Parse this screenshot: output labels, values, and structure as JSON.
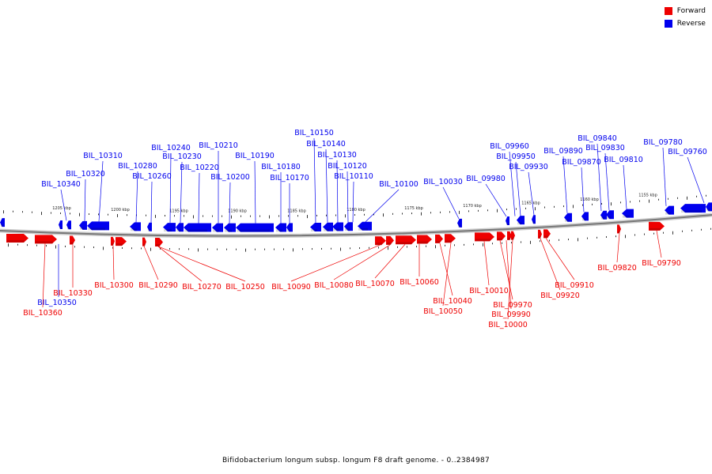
{
  "legend": {
    "forward": {
      "label": "Forward",
      "color": "#ee0000"
    },
    "reverse": {
      "label": "Reverse",
      "color": "#0000ee"
    }
  },
  "caption": "Bifidobacterium longum subsp. longum F8 draft genome. - 0..2384987",
  "scale_labels": [
    "1205 kbp",
    "1200 kbp",
    "1195 kbp",
    "1190 kbp",
    "1185 kbp",
    "1180 kbp",
    "1175 kbp",
    "1170 kbp",
    "1165 kbp",
    "1160 kbp",
    "1155 kbp"
  ],
  "reverse_labels": [
    "BIL_10340",
    "BIL_10320",
    "BIL_10310",
    "BIL_10280",
    "BIL_10260",
    "BIL_10240",
    "BIL_10230",
    "BIL_10220",
    "BIL_10210",
    "BIL_10200",
    "BIL_10190",
    "BIL_10180",
    "BIL_10170",
    "BIL_10150",
    "BIL_10140",
    "BIL_10130",
    "BIL_10120",
    "BIL_10110",
    "BIL_10100",
    "BIL_10030",
    "BIL_09980",
    "BIL_09960",
    "BIL_09950",
    "BIL_09930",
    "BIL_09890",
    "BIL_09870",
    "BIL_09840",
    "BIL_09830",
    "BIL_09810",
    "BIL_09780",
    "BIL_09760",
    "BIL_10350"
  ],
  "forward_labels": [
    "BIL_10300",
    "BIL_10290",
    "BIL_10270",
    "BIL_10250",
    "BIL_10090",
    "BIL_10080",
    "BIL_10070",
    "BIL_10060",
    "BIL_10040",
    "BIL_10050",
    "BIL_10010",
    "BIL_09970",
    "BIL_09990",
    "BIL_10000",
    "BIL_09920",
    "BIL_09910",
    "BIL_09820",
    "BIL_09790",
    "BIL_10330",
    "BIL_10360"
  ]
}
